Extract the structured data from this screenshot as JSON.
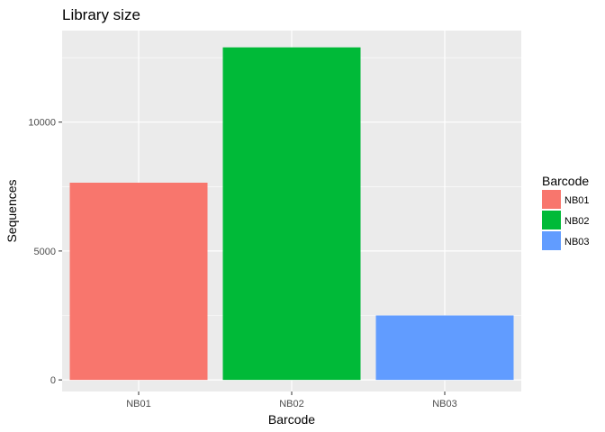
{
  "chart_data": {
    "type": "bar",
    "title": "Library size",
    "xlabel": "Barcode",
    "ylabel": "Sequences",
    "categories": [
      "NB01",
      "NB02",
      "NB03"
    ],
    "values": [
      7650,
      12900,
      2500
    ],
    "colors": [
      "#F8766D",
      "#00BA38",
      "#619CFF"
    ],
    "ylim": [
      -450,
      13550
    ],
    "yticks": [
      0,
      5000,
      10000
    ],
    "ytick_labels": [
      "0",
      "5000",
      "10000"
    ],
    "grid": true,
    "panel_background": "#EBEBEB",
    "grid_color": "#FFFFFF",
    "legend": {
      "title": "Barcode",
      "position": "right",
      "entries": [
        "NB01",
        "NB02",
        "NB03"
      ]
    }
  }
}
